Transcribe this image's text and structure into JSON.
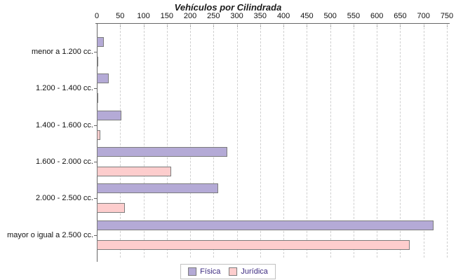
{
  "title": "Vehículos por Cilindrada",
  "legend": {
    "items": [
      {
        "label": "Física",
        "color": "#b4aad6"
      },
      {
        "label": "Jurídica",
        "color": "#fdcdcd"
      }
    ]
  },
  "colors": {
    "fisica_fill": "#b4aad6",
    "juridica_fill": "#fdcdcd",
    "bar_border": "#7c7c7c",
    "axis_line": "#666666",
    "gridline": "#cfcfcf",
    "title_text": "#1a1a1a",
    "tick_text": "#111111",
    "legend_text": "#3d2b80",
    "background": "#ffffff"
  },
  "chart_data": {
    "type": "bar",
    "orientation": "horizontal",
    "title": "Vehículos por Cilindrada",
    "categories": [
      "menor a 1.200 cc.",
      "1.200 - 1.400 cc.",
      "1.400 - 1.600 cc.",
      "1.600 - 2.000 cc.",
      "2.000 - 2.500 cc.",
      "mayor o igual a 2.500 cc."
    ],
    "series": [
      {
        "name": "Física",
        "color": "#b4aad6",
        "values": [
          15,
          25,
          52,
          280,
          260,
          722
        ]
      },
      {
        "name": "Jurídica",
        "color": "#fdcdcd",
        "values": [
          1,
          3,
          8,
          160,
          60,
          670
        ]
      }
    ],
    "xlabel": "",
    "ylabel": "",
    "xlim": [
      0,
      750
    ],
    "x_ticks": [
      0,
      50,
      100,
      150,
      200,
      250,
      300,
      350,
      400,
      450,
      500,
      550,
      600,
      650,
      700,
      750
    ],
    "grid": "vertical-dashed",
    "x_axis_position": "top",
    "legend_position": "bottom"
  }
}
